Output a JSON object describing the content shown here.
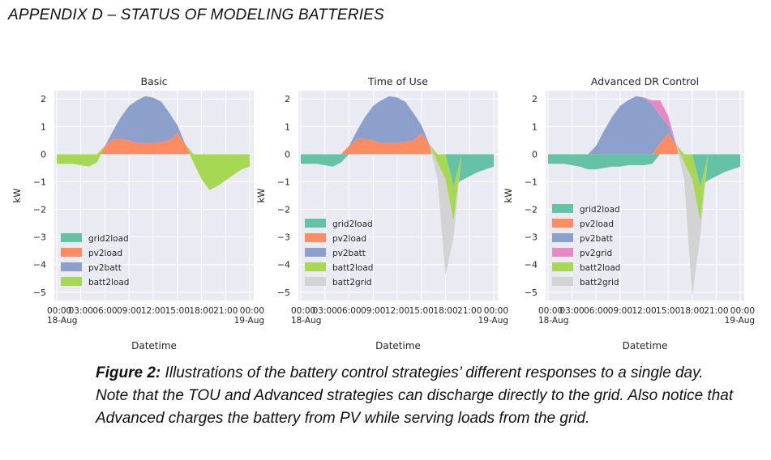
{
  "heading": "APPENDIX D – STATUS OF MODELING BATTERIES",
  "caption": {
    "label": "Figure 2:",
    "text": " Illustrations of the battery control strategies’ different responses to a single day. Note that the TOU and Advanced strategies can discharge directly to the grid. Also notice that Advanced charges the battery from PV while serving loads from the grid."
  },
  "colors": {
    "grid2load": "#66c2a5",
    "pv2load": "#fc8d62",
    "pv2batt": "#8da0cb",
    "pv2grid": "#e78ac3",
    "batt2load": "#a6d854",
    "batt2grid": "#d3d3d3",
    "axes_bg": "#eaeaf2"
  },
  "chart_data": [
    {
      "type": "area",
      "title": "Basic",
      "xlabel": "Datetime",
      "ylabel": "kW",
      "ylim": [
        -5.3,
        2.3
      ],
      "xlim": [
        -0.3,
        24.5
      ],
      "yticks": [
        2,
        1,
        0,
        -1,
        -2,
        -3,
        -4,
        -5
      ],
      "yticklabels": [
        "2",
        "1",
        "0",
        "−1",
        "−2",
        "−3",
        "−4",
        "−5"
      ],
      "xticks": [
        0,
        3,
        6,
        9,
        12,
        15,
        18,
        21,
        24
      ],
      "xticklabels": [
        "00:00\n18-Aug",
        "03:00",
        "06:00",
        "09:00",
        "12:00",
        "15:00",
        "18:00",
        "21:00",
        "00:00\n19-Aug"
      ],
      "grid": true,
      "legend_position": "lower-left",
      "legend": [
        "grid2load",
        "pv2load",
        "pv2batt",
        "batt2load"
      ],
      "x": [
        0,
        1,
        2,
        3,
        4,
        5,
        6,
        7,
        8,
        9,
        10,
        11,
        12,
        13,
        14,
        15,
        16,
        17,
        18,
        19,
        20,
        21,
        22,
        23,
        24
      ],
      "series": [
        {
          "name": "grid2load",
          "values": [
            0,
            0,
            0,
            0,
            0,
            0,
            0,
            0,
            0,
            0,
            0,
            0,
            0,
            0,
            0,
            0,
            0,
            0,
            0,
            0,
            0,
            0,
            0,
            0,
            0
          ]
        },
        {
          "name": "pv2load",
          "values": [
            0,
            0,
            0,
            0,
            0,
            0,
            0.3,
            0.55,
            0.55,
            0.5,
            0.4,
            0.4,
            0.4,
            0.45,
            0.5,
            0.75,
            0.35,
            0,
            0,
            0,
            0,
            0,
            0,
            0,
            0
          ]
        },
        {
          "name": "pv2batt",
          "values": [
            0,
            0,
            0,
            0,
            0,
            0,
            0,
            0.3,
            0.8,
            1.25,
            1.55,
            1.7,
            1.65,
            1.45,
            1.0,
            0.3,
            0,
            0,
            0,
            0,
            0,
            0,
            0,
            0,
            0
          ]
        },
        {
          "name": "batt2load",
          "values": [
            -0.35,
            -0.35,
            -0.35,
            -0.4,
            -0.45,
            -0.3,
            0,
            0,
            0,
            0,
            0,
            0,
            0,
            0,
            0,
            0,
            0,
            -0.3,
            -0.9,
            -1.3,
            -1.15,
            -0.95,
            -0.75,
            -0.55,
            -0.45
          ]
        }
      ]
    },
    {
      "type": "area",
      "title": "Time of Use",
      "xlabel": "Datetime",
      "ylabel": "kW",
      "ylim": [
        -5.3,
        2.3
      ],
      "xlim": [
        -0.3,
        24.5
      ],
      "yticks": [
        2,
        1,
        0,
        -1,
        -2,
        -3,
        -4,
        -5
      ],
      "yticklabels": [
        "2",
        "1",
        "0",
        "−1",
        "−2",
        "−3",
        "−4",
        "−5"
      ],
      "xticks": [
        0,
        3,
        6,
        9,
        12,
        15,
        18,
        21,
        24
      ],
      "xticklabels": [
        "00:00\n18-Aug",
        "03:00",
        "06:00",
        "09:00",
        "12:00",
        "15:00",
        "18:00",
        "21:00",
        "00:00\n19-Aug"
      ],
      "grid": true,
      "legend_position": "lower-left",
      "legend": [
        "grid2load",
        "pv2load",
        "pv2batt",
        "batt2load",
        "batt2grid"
      ],
      "x": [
        0,
        1,
        2,
        3,
        4,
        5,
        6,
        7,
        8,
        9,
        10,
        11,
        12,
        13,
        14,
        15,
        16,
        17,
        18,
        19,
        20,
        21,
        22,
        23,
        24
      ],
      "series": [
        {
          "name": "grid2load",
          "values": [
            -0.35,
            -0.35,
            -0.35,
            -0.4,
            -0.45,
            -0.3,
            0,
            0,
            0,
            0,
            0,
            0,
            0,
            0,
            0,
            0,
            0,
            0,
            0,
            -1.15,
            -0.95,
            -0.8,
            -0.65,
            -0.55,
            -0.45
          ]
        },
        {
          "name": "pv2load",
          "values": [
            0,
            0,
            0,
            0,
            0,
            0,
            0.3,
            0.55,
            0.55,
            0.5,
            0.4,
            0.4,
            0.4,
            0.45,
            0.5,
            0.75,
            0.35,
            0,
            0,
            0,
            0,
            0,
            0,
            0,
            0
          ]
        },
        {
          "name": "pv2batt",
          "values": [
            0,
            0,
            0,
            0,
            0,
            0,
            0,
            0.3,
            0.8,
            1.25,
            1.55,
            1.7,
            1.65,
            1.45,
            1.0,
            0.3,
            0,
            0,
            0,
            0,
            0,
            0,
            0,
            0,
            0
          ]
        },
        {
          "name": "batt2load",
          "values": [
            0,
            0,
            0,
            0,
            0,
            0,
            0,
            0,
            0,
            0,
            0,
            0,
            0,
            0,
            0,
            0,
            0,
            -0.3,
            -0.9,
            -1.3,
            0,
            0,
            0,
            0,
            0
          ]
        },
        {
          "name": "batt2grid",
          "values": [
            0,
            0,
            0,
            0,
            0,
            0,
            0,
            0,
            0,
            0,
            0,
            0,
            0,
            0,
            0,
            0,
            0,
            -0.6,
            -3.5,
            -0.6,
            0,
            0,
            0,
            0,
            0
          ]
        }
      ]
    },
    {
      "type": "area",
      "title": "Advanced DR Control",
      "xlabel": "Datetime",
      "ylabel": "kW",
      "ylim": [
        -5.3,
        2.3
      ],
      "xlim": [
        -0.3,
        24.5
      ],
      "yticks": [
        2,
        1,
        0,
        -1,
        -2,
        -3,
        -4,
        -5
      ],
      "yticklabels": [
        "2",
        "1",
        "0",
        "−1",
        "−2",
        "−3",
        "−4",
        "−5"
      ],
      "xticks": [
        0,
        3,
        6,
        9,
        12,
        15,
        18,
        21,
        24
      ],
      "xticklabels": [
        "00:00\n18-Aug",
        "03:00",
        "06:00",
        "09:00",
        "12:00",
        "15:00",
        "18:00",
        "21:00",
        "00:00\n19-Aug"
      ],
      "grid": true,
      "legend_position": "lower-left",
      "legend": [
        "grid2load",
        "pv2load",
        "pv2batt",
        "pv2grid",
        "batt2load",
        "batt2grid"
      ],
      "x": [
        0,
        1,
        2,
        3,
        4,
        5,
        6,
        7,
        8,
        9,
        10,
        11,
        12,
        13,
        14,
        15,
        16,
        17,
        18,
        19,
        20,
        21,
        22,
        23,
        24
      ],
      "series": [
        {
          "name": "grid2load",
          "values": [
            -0.35,
            -0.35,
            -0.35,
            -0.4,
            -0.45,
            -0.55,
            -0.55,
            -0.5,
            -0.45,
            -0.45,
            -0.4,
            -0.4,
            -0.4,
            -0.35,
            0,
            0,
            0,
            0,
            0,
            -1.15,
            -0.95,
            -0.8,
            -0.65,
            -0.55,
            -0.45
          ]
        },
        {
          "name": "pv2load",
          "values": [
            0,
            0,
            0,
            0,
            0,
            0,
            0,
            0,
            0,
            0,
            0,
            0,
            0,
            0,
            0.4,
            0.75,
            0.35,
            0,
            0,
            0,
            0,
            0,
            0,
            0,
            0
          ]
        },
        {
          "name": "pv2batt",
          "values": [
            0,
            0,
            0,
            0,
            0,
            0,
            0.3,
            0.85,
            1.35,
            1.75,
            1.95,
            2.1,
            2.05,
            1.8,
            1.0,
            0.3,
            0,
            0,
            0,
            0,
            0,
            0,
            0,
            0,
            0
          ]
        },
        {
          "name": "pv2grid",
          "values": [
            0,
            0,
            0,
            0,
            0,
            0,
            0,
            0,
            0,
            0,
            0,
            0,
            0,
            0.15,
            0.55,
            0.35,
            0,
            0,
            0,
            0,
            0,
            0,
            0,
            0,
            0
          ]
        },
        {
          "name": "batt2load",
          "values": [
            0,
            0,
            0,
            0,
            0,
            0,
            0,
            0,
            0,
            0,
            0,
            0,
            0,
            0,
            0,
            0,
            0,
            -0.3,
            -0.9,
            -1.3,
            0,
            0,
            0,
            0,
            0
          ]
        },
        {
          "name": "batt2grid",
          "values": [
            0,
            0,
            0,
            0,
            0,
            0,
            0,
            0,
            0,
            0,
            0,
            0,
            0,
            0,
            0,
            0,
            0,
            -0.6,
            -4.25,
            -0.55,
            0,
            0,
            0,
            0,
            0
          ]
        }
      ]
    }
  ]
}
